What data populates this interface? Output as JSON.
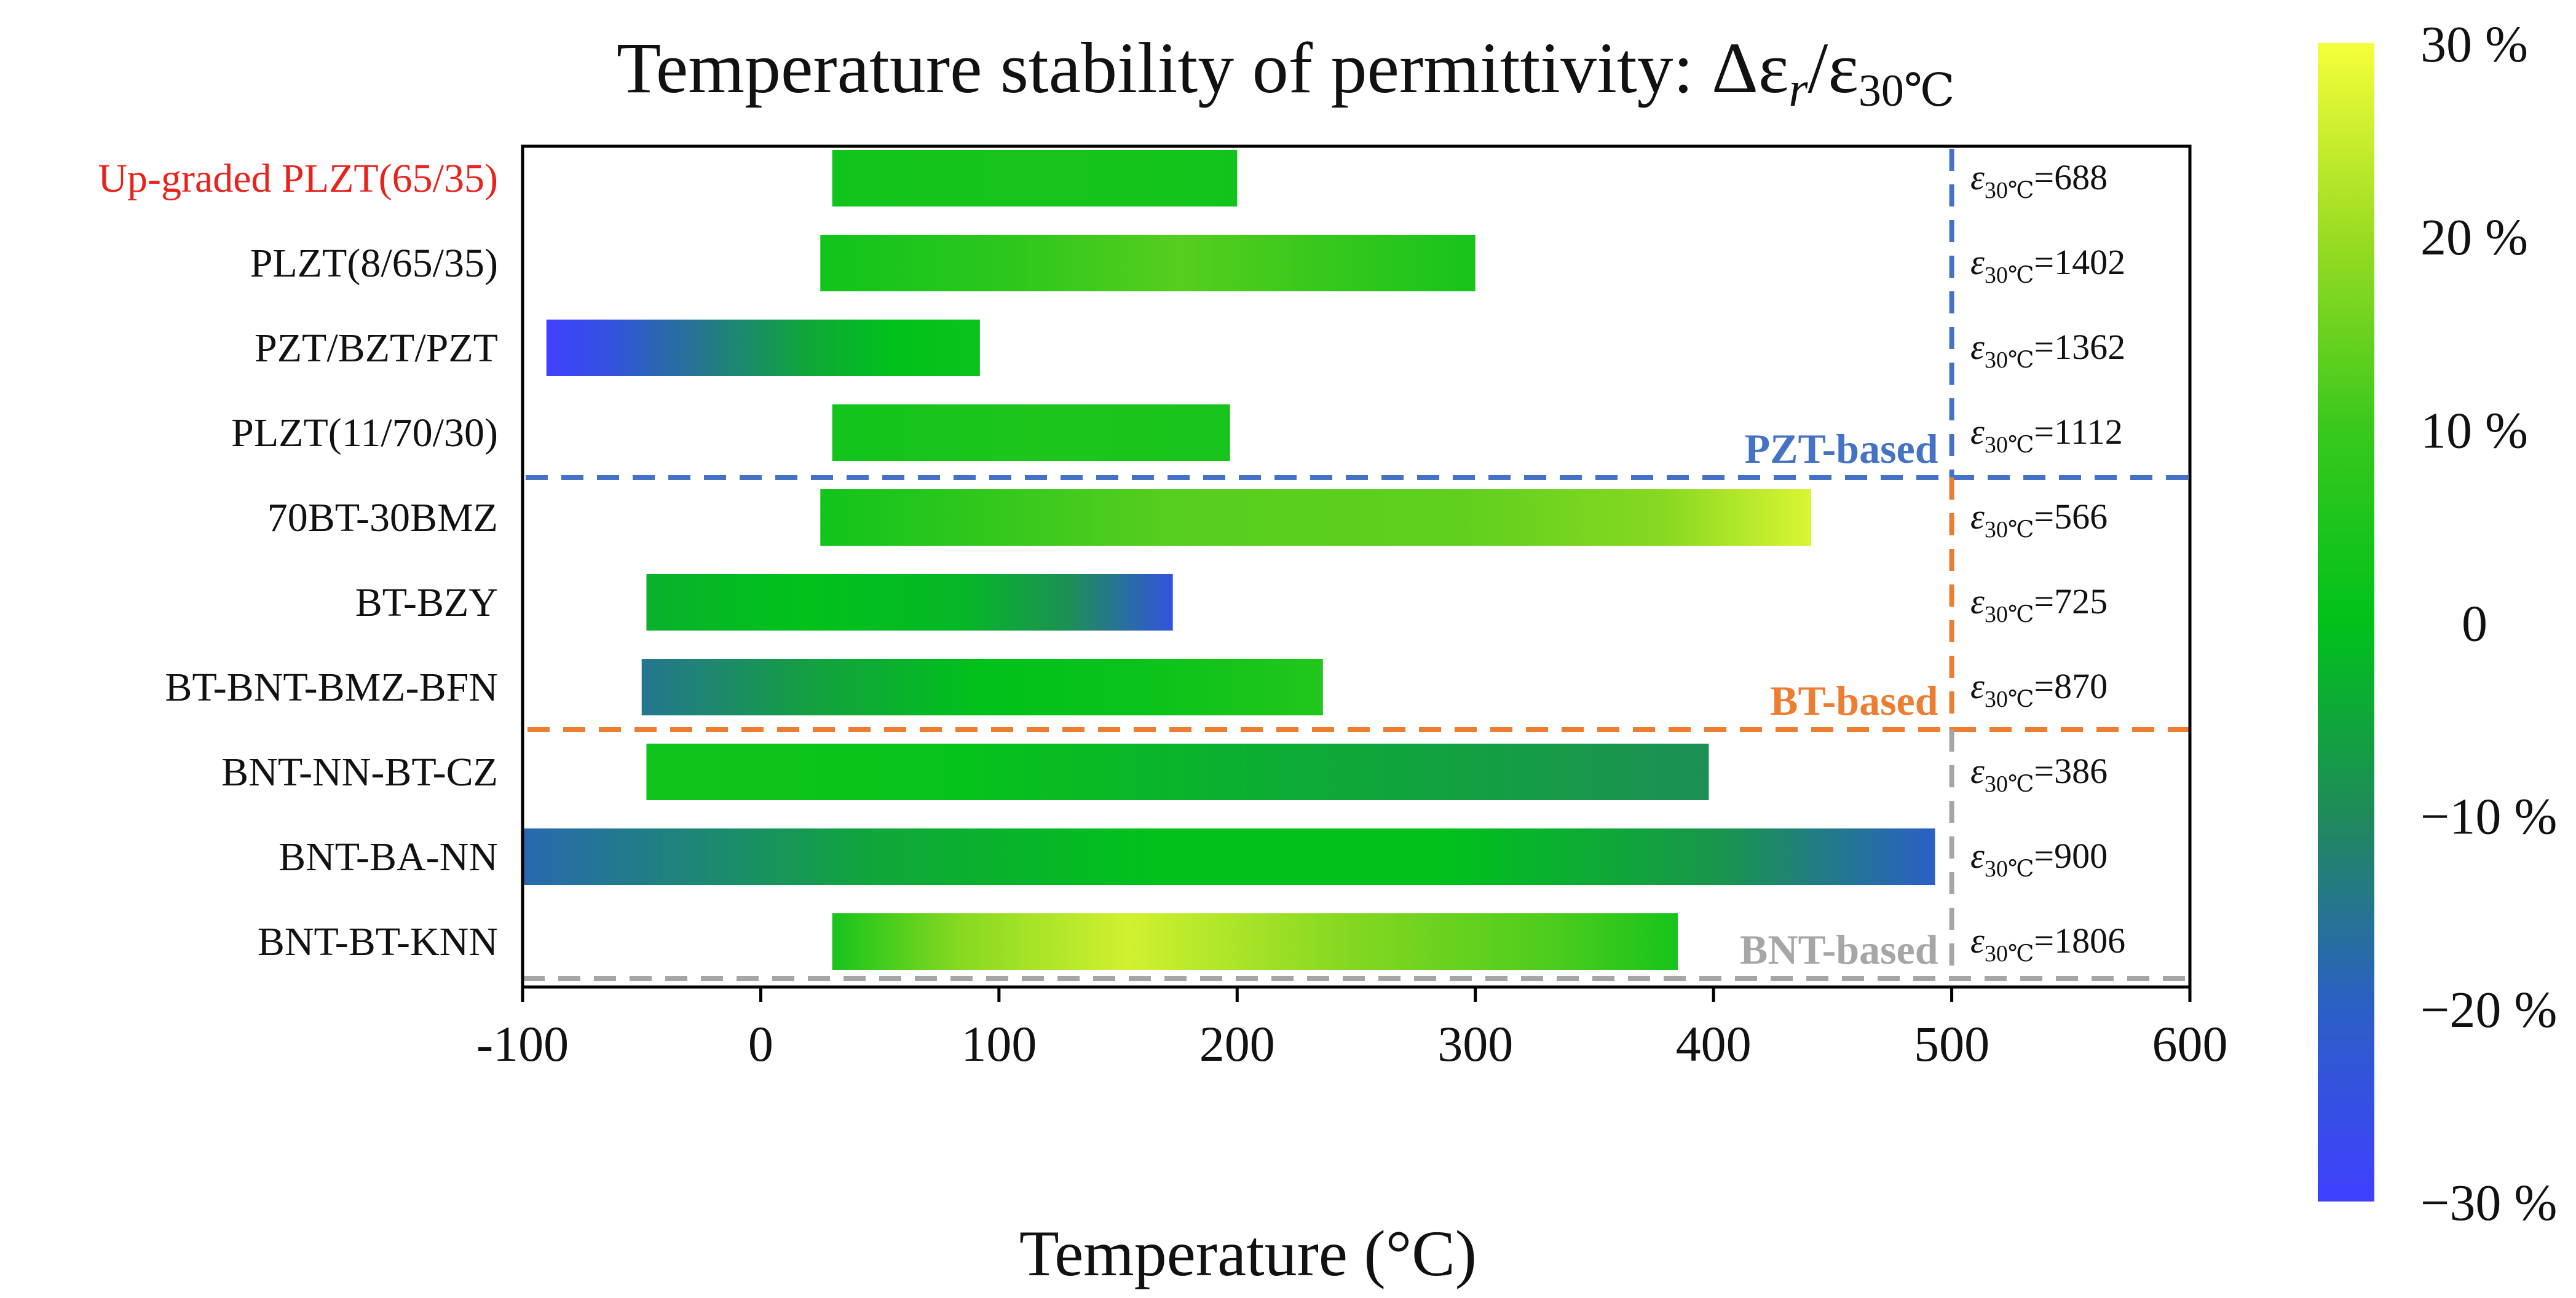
{
  "chart_data": {
    "type": "bar",
    "title_main": "Temperature stability of permittivity: Δε",
    "title_r": "r",
    "title_slash": "/ε",
    "title_sub": "30℃",
    "xlabel": "Temperature (°C)",
    "xlim": [
      -100,
      600
    ],
    "xticks": [
      "-100",
      "0",
      "100",
      "200",
      "300",
      "400",
      "500",
      "600"
    ],
    "xtick_values": [
      -100,
      0,
      100,
      200,
      300,
      400,
      500,
      600
    ],
    "eps_symbol": "ε",
    "eps_subscript": "30℃",
    "bars": [
      {
        "category": "Up-graded PLZT(65/35)",
        "label_color": "#e8231e",
        "start": 30,
        "end": 200,
        "eps_label": "=688",
        "profile": [
          [
            0,
            3
          ],
          [
            0.5,
            4
          ],
          [
            1,
            3
          ]
        ]
      },
      {
        "category": "PLZT(8/65/35)",
        "label_color": "#111111",
        "start": 25,
        "end": 300,
        "eps_label": "=1402",
        "profile": [
          [
            0,
            3
          ],
          [
            0.3,
            8
          ],
          [
            0.55,
            13
          ],
          [
            0.75,
            10
          ],
          [
            1,
            4
          ]
        ]
      },
      {
        "category": "PZT/BZT/PZT",
        "label_color": "#111111",
        "start": -90,
        "end": 92,
        "eps_label": "=1362",
        "profile": [
          [
            0,
            -30
          ],
          [
            0.15,
            -24
          ],
          [
            0.35,
            -15
          ],
          [
            0.6,
            -5
          ],
          [
            0.8,
            0
          ],
          [
            1,
            2
          ]
        ]
      },
      {
        "category": "PLZT(11/70/30)",
        "label_color": "#111111",
        "start": 30,
        "end": 197,
        "eps_label": "=1112",
        "profile": [
          [
            0,
            3
          ],
          [
            0.5,
            5
          ],
          [
            1,
            4
          ]
        ]
      },
      {
        "category": "70BT-30BMZ",
        "label_color": "#111111",
        "start": 25,
        "end": 441,
        "eps_label": "=566",
        "profile": [
          [
            0,
            3
          ],
          [
            0.15,
            8
          ],
          [
            0.35,
            13
          ],
          [
            0.65,
            14
          ],
          [
            0.85,
            18
          ],
          [
            1,
            27
          ]
        ]
      },
      {
        "category": "BT-BZY",
        "label_color": "#111111",
        "start": -48,
        "end": 173,
        "eps_label": "=725",
        "profile": [
          [
            0,
            -3
          ],
          [
            0.3,
            0
          ],
          [
            0.6,
            -2
          ],
          [
            0.8,
            -9
          ],
          [
            1,
            -24
          ]
        ]
      },
      {
        "category": "BT-BNT-BMZ-BFN",
        "label_color": "#111111",
        "start": -50,
        "end": 236,
        "eps_label": "=870",
        "profile": [
          [
            0,
            -15
          ],
          [
            0.25,
            -6
          ],
          [
            0.5,
            0
          ],
          [
            0.75,
            2
          ],
          [
            1,
            6
          ]
        ]
      },
      {
        "category": "BNT-NN-BT-CZ",
        "label_color": "#111111",
        "start": -48,
        "end": 398,
        "eps_label": "=386",
        "profile": [
          [
            0,
            3
          ],
          [
            0.3,
            1
          ],
          [
            0.6,
            -4
          ],
          [
            1,
            -9
          ]
        ]
      },
      {
        "category": "BNT-BA-NN",
        "label_color": "#111111",
        "start": -100,
        "end": 493,
        "eps_label": "=900",
        "profile": [
          [
            0,
            -18
          ],
          [
            0.25,
            -5
          ],
          [
            0.45,
            0
          ],
          [
            0.65,
            0
          ],
          [
            0.85,
            -8
          ],
          [
            1,
            -20
          ]
        ]
      },
      {
        "category": "BNT-BT-KNN",
        "label_color": "#111111",
        "start": 30,
        "end": 385,
        "eps_label": "=1806",
        "profile": [
          [
            0,
            4
          ],
          [
            0.15,
            18
          ],
          [
            0.35,
            26
          ],
          [
            0.6,
            18
          ],
          [
            0.85,
            12
          ],
          [
            1,
            4
          ]
        ]
      }
    ],
    "groups": [
      {
        "label": "PZT-based",
        "color": "#4472c4",
        "after_row": 3
      },
      {
        "label": "BT-based",
        "color": "#ed7d31",
        "after_row": 6
      },
      {
        "label": "BNT-based",
        "color": "#a6a6a6",
        "after_row": 9
      }
    ],
    "colorbar": {
      "min": -30,
      "max": 30,
      "tick_values": [
        30,
        20,
        10,
        0,
        -10,
        -20,
        -30
      ],
      "tick_labels": [
        "30 %",
        "20 %",
        "10 %",
        "0",
        "−10 %",
        "−20 %",
        "−30 %"
      ],
      "colors": [
        [
          -30,
          "#4040ff"
        ],
        [
          -20,
          "#2b5fc6"
        ],
        [
          -10,
          "#1f8a5a"
        ],
        [
          0,
          "#00c21a"
        ],
        [
          10,
          "#39c81c"
        ],
        [
          20,
          "#9bdc22"
        ],
        [
          30,
          "#f5ff3a"
        ]
      ]
    },
    "vline_at": 500
  }
}
